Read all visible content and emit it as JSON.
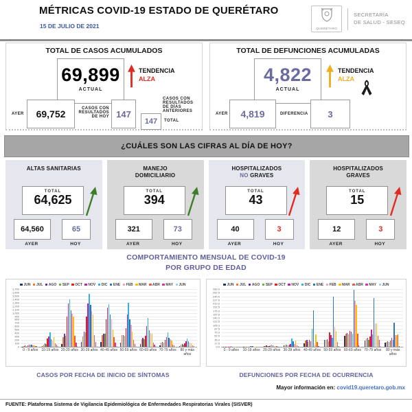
{
  "header": {
    "title": "MÉTRICAS COVID-19 ESTADO DE QUERÉTARO",
    "date": "15 DE JULIO DE 2021",
    "logo": {
      "org": "QUERÉTARO",
      "dept_line1": "SECRETARÍA",
      "dept_line2": "DE SALUD - SESEQ"
    }
  },
  "totals": {
    "cases": {
      "title": "TOTAL DE CASOS ACUMULADOS",
      "actual": "69,899",
      "actual_label": "ACTUAL",
      "ayer_label": "AYER",
      "ayer": "69,752",
      "hoy_label": "CASOS CON RESULTADOS DE HOY",
      "hoy": "147",
      "prev_label": "CASOS CON RESULTADOS DE DÍAS ANTERIORES",
      "total": "147",
      "total_label": "TOTAL",
      "trend_label": "TENDENCIA",
      "trend_value": "ALZA",
      "trend_color": "#e02b20"
    },
    "deaths": {
      "title": "TOTAL DE DEFUNCIONES ACUMULADAS",
      "actual": "4,822",
      "actual_label": "ACTUAL",
      "ayer_label": "AYER",
      "ayer": "4,819",
      "diff_label": "DIFERENCIA",
      "diff": "3",
      "trend_label": "TENDENCIA",
      "trend_value": "ALZA",
      "trend_color": "#f0ad1e",
      "number_color": "#6b6b9f"
    }
  },
  "banner": "¿CUÁLES SON LAS CIFRAS AL DÍA DE HOY?",
  "today_cards": [
    {
      "title1": "ALTAS SANITARIAS",
      "title2_accent": "",
      "title2": "",
      "total_label": "TOTAL",
      "total": "64,625",
      "ayer": "64,560",
      "hoy": "65",
      "ayer_label": "AYER",
      "hoy_label": "HOY",
      "hoy_color": "#6b6b9f",
      "arrow_color": "#3e7d28",
      "bg": "#e6e6ee"
    },
    {
      "title1": "MANEJO",
      "title2_accent": "",
      "title2": "DOMICILIARIO",
      "total_label": "TOTAL",
      "total": "394",
      "ayer": "321",
      "hoy": "73",
      "ayer_label": "AYER",
      "hoy_label": "HOY",
      "hoy_color": "#6b6b9f",
      "arrow_color": "#3e7d28",
      "bg": "#d9d9d9"
    },
    {
      "title1": "HOSPITALIZADOS",
      "title2_accent": "NO ",
      "title2": "GRAVES",
      "total_label": "TOTAL",
      "total": "43",
      "ayer": "40",
      "hoy": "3",
      "ayer_label": "AYER",
      "hoy_label": "HOY",
      "hoy_color": "#e02b20",
      "arrow_color": "#e02b20",
      "bg": "#e6e6ee"
    },
    {
      "title1": "HOSPITALIZADOS",
      "title2_accent": "",
      "title2": "GRAVES",
      "total_label": "TOTAL",
      "total": "15",
      "ayer": "12",
      "hoy": "3",
      "ayer_label": "AYER",
      "hoy_label": "HOY",
      "hoy_color": "#e02b20",
      "arrow_color": "#e02b20",
      "bg": "#d9d9d9"
    }
  ],
  "section_title_line1": "COMPORTAMIENTO MENSUAL DE COVID-19",
  "section_title_line2": "POR GRUPO DE EDAD",
  "chart_data": [
    {
      "type": "bar",
      "title": "CASOS POR FECHA DE INICIO DE SÍNTOMAS",
      "categories": [
        "0 - 9 años",
        "10-19 años",
        "20-29 años",
        "30-39 años",
        "40-49 años",
        "50-59 años",
        "60-69 años",
        "70-79 años",
        "80 y más años"
      ],
      "ylim": [
        0,
        1700
      ],
      "ytick_step": 100,
      "tick_format": "thousands",
      "grid": true,
      "legend_position": "top",
      "series": [
        {
          "name": "JUN",
          "color": "#1f3864",
          "values": [
            10,
            25,
            90,
            140,
            150,
            130,
            90,
            45,
            25
          ]
        },
        {
          "name": "JUL",
          "color": "#ed7d31",
          "values": [
            30,
            65,
            290,
            310,
            340,
            340,
            230,
            120,
            70
          ]
        },
        {
          "name": "AGO",
          "color": "#7030a0",
          "values": [
            40,
            95,
            390,
            450,
            380,
            350,
            260,
            150,
            90
          ]
        },
        {
          "name": "SEP",
          "color": "#70ad47",
          "values": [
            30,
            80,
            330,
            420,
            380,
            330,
            230,
            130,
            70
          ]
        },
        {
          "name": "OCT",
          "color": "#e02020",
          "values": [
            50,
            250,
            900,
            900,
            800,
            550,
            330,
            200,
            110
          ]
        },
        {
          "name": "NOV",
          "color": "#bf2596",
          "values": [
            60,
            300,
            1270,
            1280,
            1150,
            950,
            600,
            280,
            160
          ]
        },
        {
          "name": "DIC",
          "color": "#33b1e0",
          "values": [
            65,
            420,
            1400,
            1550,
            1250,
            1300,
            850,
            430,
            250
          ]
        },
        {
          "name": "ENE",
          "color": "#2e75b6",
          "values": [
            60,
            230,
            1070,
            1230,
            950,
            800,
            480,
            260,
            160
          ]
        },
        {
          "name": "FEB",
          "color": "#f59ec0",
          "values": [
            40,
            180,
            980,
            1050,
            800,
            650,
            400,
            230,
            130
          ]
        },
        {
          "name": "MAR",
          "color": "#ffc000",
          "values": [
            50,
            280,
            900,
            950,
            500,
            450,
            380,
            180,
            110
          ]
        },
        {
          "name": "ABR",
          "color": "#f05a3c",
          "values": [
            30,
            100,
            320,
            350,
            280,
            200,
            120,
            70,
            50
          ]
        },
        {
          "name": "MAY",
          "color": "#d43a9b",
          "values": [
            20,
            60,
            130,
            140,
            120,
            90,
            60,
            35,
            25
          ]
        },
        {
          "name": "JUN",
          "color": "#a9d0ee",
          "values": [
            10,
            20,
            30,
            30,
            25,
            20,
            15,
            10,
            8
          ]
        }
      ]
    },
    {
      "type": "bar",
      "title": "DEFUNCIONES POR FECHA DE OCURRENCIA",
      "categories": [
        "0 - 9 años",
        "10-19 años",
        "20-29 años",
        "30-39 años",
        "40-49 años",
        "50-59 años",
        "60-69 años",
        "70-79 años",
        "80 y más años"
      ],
      "ylim": [
        0,
        280
      ],
      "ytick_step": 17.5,
      "tick_format": "decimal1",
      "grid": true,
      "legend_position": "top",
      "series": [
        {
          "name": "JUN",
          "color": "#1f3864",
          "values": [
            1,
            1,
            2,
            6,
            18,
            32,
            55,
            30,
            20
          ]
        },
        {
          "name": "JUL",
          "color": "#ed7d31",
          "values": [
            1,
            1,
            5,
            9,
            30,
            35,
            62,
            40,
            25
          ]
        },
        {
          "name": "AGO",
          "color": "#7030a0",
          "values": [
            1,
            1,
            6,
            9,
            35,
            36,
            68,
            45,
            28
          ]
        },
        {
          "name": "SEP",
          "color": "#70ad47",
          "values": [
            0,
            1,
            3,
            7,
            25,
            28,
            60,
            35,
            22
          ]
        },
        {
          "name": "OCT",
          "color": "#e02020",
          "values": [
            1,
            1,
            4,
            9,
            32,
            70,
            77,
            50,
            30
          ]
        },
        {
          "name": "NOV",
          "color": "#bf2596",
          "values": [
            1,
            2,
            6,
            13,
            28,
            57,
            75,
            85,
            42
          ]
        },
        {
          "name": "DIC",
          "color": "#33b1e0",
          "values": [
            2,
            3,
            10,
            40,
            88,
            43,
            62,
            60,
            35
          ]
        },
        {
          "name": "ENE",
          "color": "#2e75b6",
          "values": [
            1,
            2,
            8,
            26,
            177,
            245,
            278,
            237,
            117
          ]
        },
        {
          "name": "FEB",
          "color": "#f59ec0",
          "values": [
            1,
            1,
            3,
            12,
            10,
            98,
            225,
            115,
            58
          ]
        },
        {
          "name": "MAR",
          "color": "#ffc000",
          "values": [
            1,
            1,
            4,
            30,
            60,
            78,
            205,
            113,
            57
          ]
        },
        {
          "name": "ABR",
          "color": "#f05a3c",
          "values": [
            0,
            1,
            2,
            6,
            22,
            22,
            65,
            52,
            60
          ]
        },
        {
          "name": "MAY",
          "color": "#d43a9b",
          "values": [
            0,
            0,
            1,
            2,
            5,
            5,
            8,
            35,
            3
          ]
        },
        {
          "name": "JUN",
          "color": "#a9d0ee",
          "values": [
            0,
            0,
            0,
            0,
            0,
            1,
            1,
            2,
            1
          ]
        }
      ]
    }
  ],
  "captions": {
    "left": "CASOS POR FECHA DE INICIO DE SÍNTOMAS",
    "right": "DEFUNCIONES POR FECHA DE OCURRENCIA"
  },
  "more_info": {
    "label": "Mayor información en:",
    "link": "covid19.queretaro.gob.mx"
  },
  "footer": "FUENTE: Plataforma Sistema de Vigilancia Epidemiológica de Enfermedades Respiratorias Virales (SISVER)"
}
